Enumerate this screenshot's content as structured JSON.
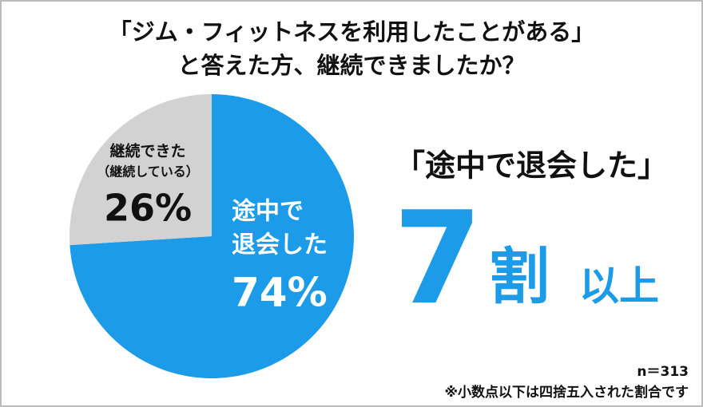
{
  "chart_data": {
    "type": "pie",
    "title_lines": [
      "「ジム・フィットネスを利用したことがある」",
      "と答えた方、継続できましたか？"
    ],
    "labels": [
      [
        "途中で",
        "退会した"
      ],
      [
        "継続できた",
        "（継続している）"
      ]
    ],
    "values": [
      74,
      26
    ],
    "value_labels": [
      "74%",
      "26%"
    ],
    "colors": [
      "#1b9be8",
      "#d2d2d2"
    ],
    "callout": {
      "quote": "「途中で退会した」",
      "big": "7",
      "unit": "割",
      "suffix": "以上"
    },
    "sample": "n＝313",
    "note": "※小数点以下は四捨五入された割合です"
  }
}
